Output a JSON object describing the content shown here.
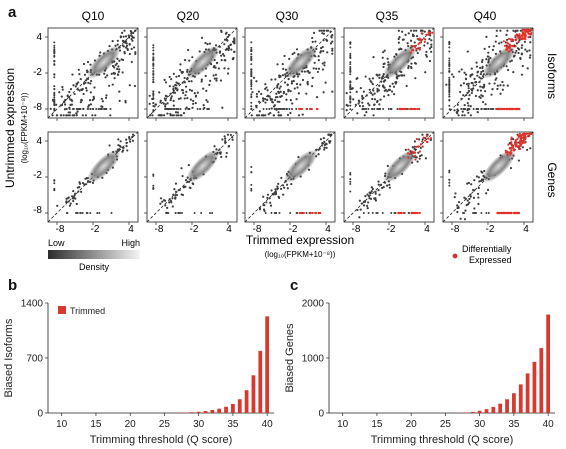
{
  "panel_letters": [
    "a",
    "b",
    "c"
  ],
  "colors": {
    "scatter_point": "#3d3d3d",
    "diff_expressed": "#e0322b",
    "bar": "#d7382f",
    "diagonal": "#222222",
    "frame": "#222222"
  },
  "panel_a": {
    "columns": [
      "Q10",
      "Q20",
      "Q30",
      "Q35",
      "Q40"
    ],
    "rows": [
      "Isoforms",
      "Genes"
    ],
    "tick_labels": [
      "4",
      "-2",
      "-8"
    ],
    "x_tick_labels": [
      "-8",
      "-2",
      "4"
    ],
    "ylabel_main": "Untrimmed expression",
    "ylabel_sub": "(log₁₀(FPKM+10⁻⁸))",
    "xlabel_main": "Trimmed expression",
    "xlabel_sub": "(log₁₀(FPKM+10⁻⁸))",
    "density_legend": {
      "low": "Low",
      "high": "High",
      "label": "Density"
    },
    "diff_legend": {
      "line1": "Differentially",
      "line2": "Expressed"
    }
  },
  "chart_data": [
    {
      "panel": "b",
      "type": "bar",
      "xlabel": "Trimming threshold (Q score)",
      "ylabel": "Biased Isoforms",
      "legend": "Trimmed",
      "legend_placement": "top-left",
      "grid": false,
      "xlim": [
        8,
        41
      ],
      "ylim": [
        0,
        1400
      ],
      "x_ticks": [
        10,
        15,
        20,
        25,
        30,
        35,
        40
      ],
      "y_ticks": [
        0,
        700,
        1400
      ],
      "x": [
        27,
        28,
        29,
        30,
        31,
        32,
        33,
        34,
        35,
        36,
        37,
        38,
        39,
        40
      ],
      "values": [
        3,
        6,
        10,
        16,
        25,
        38,
        55,
        80,
        115,
        175,
        290,
        480,
        790,
        1230
      ]
    },
    {
      "panel": "c",
      "type": "bar",
      "xlabel": "Trimming threshold (Q score)",
      "ylabel": "Biased Genes",
      "legend_placement": "none",
      "grid": false,
      "xlim": [
        8,
        41
      ],
      "ylim": [
        0,
        2000
      ],
      "x_ticks": [
        10,
        15,
        20,
        25,
        30,
        35,
        40
      ],
      "y_ticks": [
        0,
        1000,
        2000
      ],
      "x": [
        27,
        28,
        29,
        30,
        31,
        32,
        33,
        34,
        35,
        36,
        37,
        38,
        39,
        40
      ],
      "values": [
        5,
        10,
        20,
        40,
        70,
        110,
        170,
        250,
        360,
        520,
        720,
        930,
        1180,
        1790
      ]
    }
  ]
}
